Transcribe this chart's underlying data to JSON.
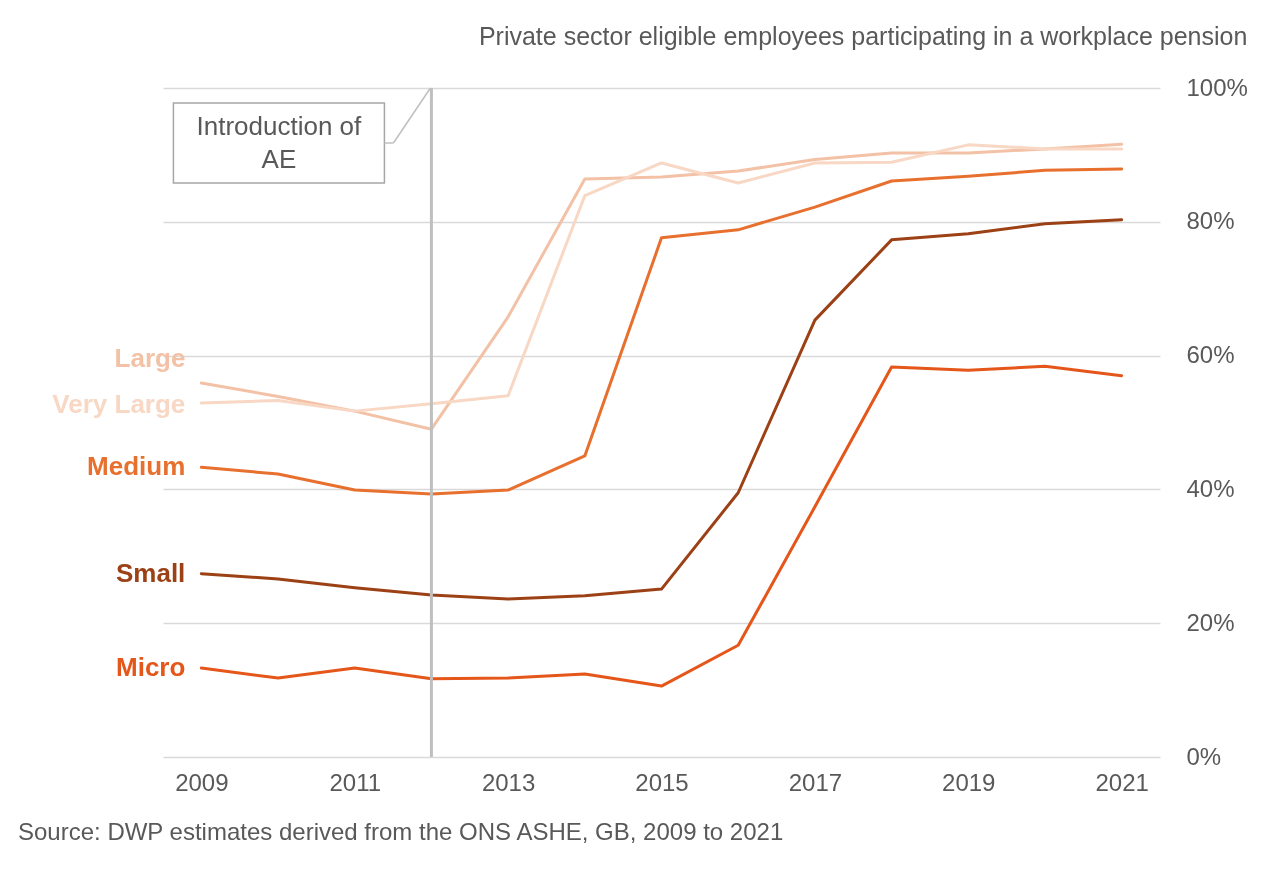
{
  "chart_data": {
    "type": "line",
    "title": "Private sector eligible employees participating in a workplace pension",
    "x": [
      2009,
      2010,
      2011,
      2012,
      2013,
      2014,
      2015,
      2016,
      2017,
      2018,
      2019,
      2020,
      2021
    ],
    "series": [
      {
        "name": "Large",
        "color": "#f3c1a5",
        "values": [
          55.9,
          53.9,
          51.7,
          49.0,
          65.8,
          86.4,
          86.7,
          87.6,
          89.3,
          90.3,
          90.3,
          90.9,
          91.6
        ]
      },
      {
        "name": "Very Large",
        "color": "#f8d7c4",
        "values": [
          52.9,
          53.3,
          51.7,
          52.8,
          54.0,
          83.9,
          88.8,
          85.8,
          88.8,
          88.9,
          91.5,
          90.9,
          90.9
        ]
      },
      {
        "name": "Medium",
        "color": "#e8702e",
        "values": [
          43.3,
          42.3,
          39.9,
          39.3,
          39.9,
          45.0,
          77.6,
          78.8,
          82.2,
          86.1,
          86.8,
          87.7,
          87.9
        ]
      },
      {
        "name": "Small",
        "color": "#9c4115",
        "values": [
          27.4,
          26.6,
          25.3,
          24.2,
          23.6,
          24.1,
          25.1,
          39.5,
          65.3,
          77.3,
          78.2,
          79.7,
          80.3
        ]
      },
      {
        "name": "Micro",
        "color": "#e5561a",
        "values": [
          13.3,
          11.8,
          13.3,
          11.7,
          11.8,
          12.4,
          10.6,
          16.7,
          37.4,
          58.3,
          57.8,
          58.4,
          57.0
        ]
      }
    ],
    "xlim": [
      2008.5,
      2021.5
    ],
    "xticks": [
      2009,
      2011,
      2013,
      2015,
      2017,
      2019,
      2021
    ],
    "ylim": [
      0,
      100
    ],
    "yticks": [
      {
        "value": 0,
        "label": "0%"
      },
      {
        "value": 20,
        "label": "20%"
      },
      {
        "value": 40,
        "label": "40%"
      },
      {
        "value": 60,
        "label": "60%"
      },
      {
        "value": 80,
        "label": "80%"
      },
      {
        "value": 100,
        "label": "100%"
      }
    ],
    "grid": "y",
    "ref_lines": [
      {
        "axis": "x",
        "value": 2012,
        "label": "Introduction of AE",
        "color": "#bfbfbf"
      }
    ],
    "annotations": [
      "Source: DWP estimates derived from the ONS ASHE, GB, 2009 to 2021"
    ]
  }
}
